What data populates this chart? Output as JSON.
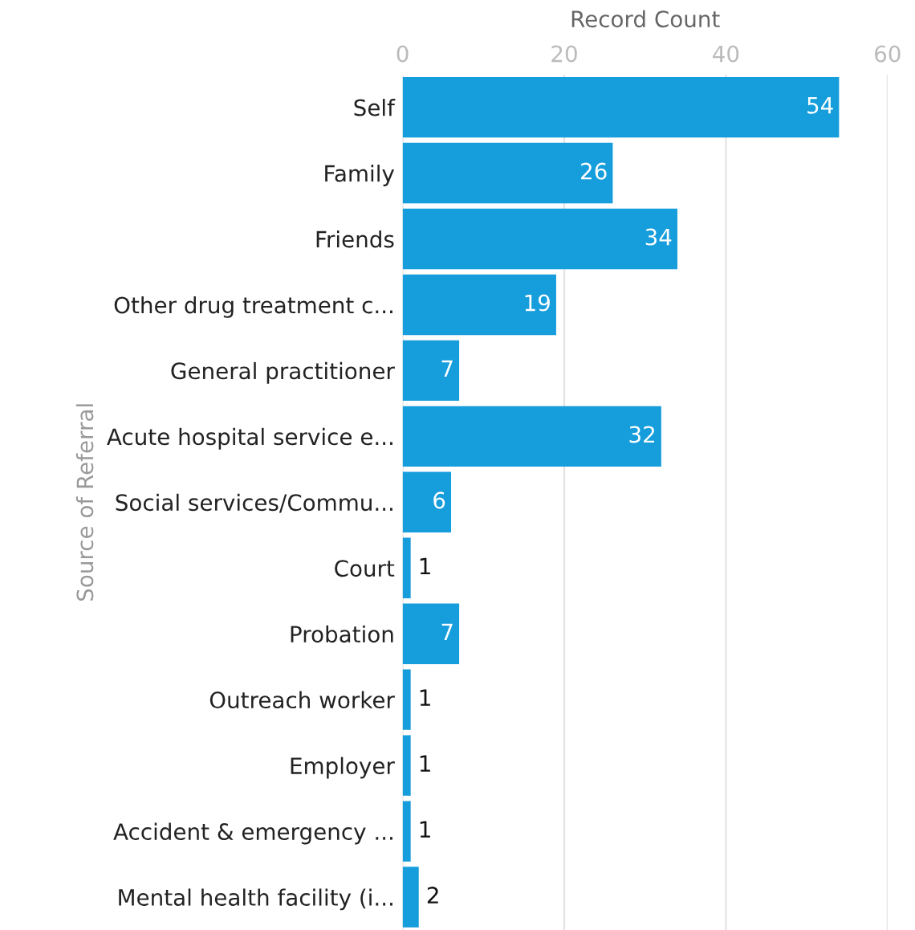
{
  "chart_data": {
    "type": "bar",
    "orientation": "horizontal",
    "xlabel": "Record Count",
    "ylabel": "Source of Referral",
    "categories": [
      "Self",
      "Family",
      "Friends",
      "Other drug treatment c...",
      "General practitioner",
      "Acute hospital service e...",
      "Social services/Commu...",
      "Court",
      "Probation",
      "Outreach worker",
      "Employer",
      "Accident & emergency ...",
      "Mental health facility (i..."
    ],
    "values": [
      54,
      26,
      34,
      19,
      7,
      32,
      6,
      1,
      7,
      1,
      1,
      1,
      2
    ],
    "color": "#169ddc",
    "xlim": [
      0,
      60
    ],
    "xticks": [
      0,
      20,
      40,
      60
    ],
    "grid": "x",
    "data_labels": true,
    "legend": false
  }
}
